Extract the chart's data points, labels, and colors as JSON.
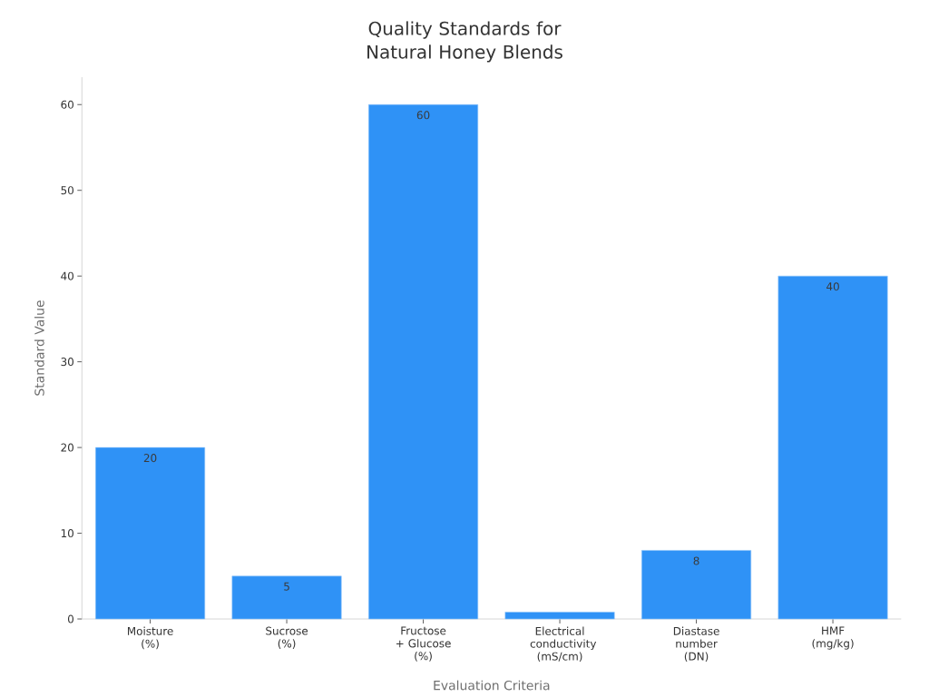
{
  "chart_data": {
    "type": "bar",
    "title": "Quality Standards for Natural Honey Blends",
    "xlabel": "Evaluation Criteria",
    "ylabel": "Standard Value",
    "categories": [
      "Moisture (%)",
      "Sucrose (%)",
      "Fructose + Glucose (%)",
      "Electrical conductivity (mS/cm)",
      "Diastase number (DN)",
      "HMF (mg/kg)"
    ],
    "values": [
      20,
      5,
      60,
      0.8,
      8,
      40
    ],
    "color": "#2f92f6",
    "value_labels": [
      "20",
      "5",
      "60",
      null,
      "8",
      "40"
    ],
    "ylim": [
      0,
      63.2
    ],
    "yticks": [
      0,
      10,
      20,
      30,
      40,
      50,
      60
    ]
  }
}
